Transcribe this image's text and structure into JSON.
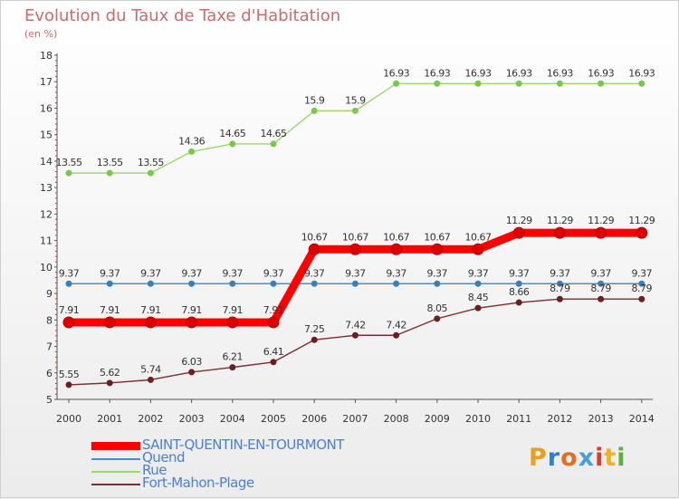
{
  "title": "Evolution du Taux de Taxe d'Habitation",
  "unit": "(en %)",
  "logo": {
    "text": "Proxiti",
    "letters": [
      {
        "ch": "P",
        "color": "#e8a020"
      },
      {
        "ch": "r",
        "color": "#2f7fd0"
      },
      {
        "ch": "o",
        "color": "#e07020"
      },
      {
        "ch": "x",
        "color": "#46a0d8"
      },
      {
        "ch": "i",
        "color": "#e23a2a"
      },
      {
        "ch": "t",
        "color": "#f0b020"
      },
      {
        "ch": "i",
        "color": "#5ab030"
      }
    ]
  },
  "chart_data": {
    "type": "line",
    "title": "Evolution du Taux de Taxe d'Habitation",
    "ylabel": "(en %)",
    "xlabel": "",
    "x": [
      "2000",
      "2001",
      "2002",
      "2003",
      "2004",
      "2005",
      "2006",
      "2007",
      "2008",
      "2009",
      "2010",
      "2011",
      "2012",
      "2013",
      "2014"
    ],
    "ylim": [
      5,
      18
    ],
    "yticks": [
      "5",
      "6",
      "7",
      "8",
      "9",
      "10",
      "11",
      "12",
      "13",
      "14",
      "15",
      "16",
      "17",
      "18"
    ],
    "grid": false,
    "legend_position": "bottom-left",
    "series": [
      {
        "name": "SAINT-QUENTIN-EN-TOURMONT",
        "color": "#ff0000",
        "marker": "#dd0000",
        "thick": true,
        "values": [
          7.91,
          7.91,
          7.91,
          7.91,
          7.91,
          7.91,
          10.67,
          10.67,
          10.67,
          10.67,
          10.67,
          11.29,
          11.29,
          11.29,
          11.29
        ],
        "labels": [
          "7.91",
          "7.91",
          "7.91",
          "7.91",
          "7.91",
          "7.91",
          "10.67",
          "10.67",
          "10.67",
          "10.67",
          "10.67",
          "11.29",
          "11.29",
          "11.29",
          "11.29"
        ]
      },
      {
        "name": "Quend",
        "color": "#4c8fc6",
        "marker": "#3a7fb8",
        "thick": false,
        "values": [
          9.37,
          9.37,
          9.37,
          9.37,
          9.37,
          9.37,
          9.37,
          9.37,
          9.37,
          9.37,
          9.37,
          9.37,
          9.37,
          9.37,
          9.37
        ],
        "labels": [
          "9.37",
          "9.37",
          "9.37",
          "9.37",
          "9.37",
          "9.37",
          "9.37",
          "9.37",
          "9.37",
          "9.37",
          "9.37",
          "9.37",
          "9.37",
          "9.37",
          "9.37"
        ]
      },
      {
        "name": "Rue",
        "color": "#9bd870",
        "marker": "#78c84a",
        "thick": false,
        "values": [
          13.55,
          13.55,
          13.55,
          14.36,
          14.65,
          14.65,
          15.9,
          15.9,
          16.93,
          16.93,
          16.93,
          16.93,
          16.93,
          16.93,
          16.93
        ],
        "labels": [
          "13.55",
          "13.55",
          "13.55",
          "14.36",
          "14.65",
          "14.65",
          "15.9",
          "15.9",
          "16.93",
          "16.93",
          "16.93",
          "16.93",
          "16.93",
          "16.93",
          "16.93"
        ]
      },
      {
        "name": "Fort-Mahon-Plage",
        "color": "#7a2e2e",
        "marker": "#6a2020",
        "thick": false,
        "values": [
          5.55,
          5.62,
          5.74,
          6.03,
          6.21,
          6.41,
          7.25,
          7.42,
          7.42,
          8.05,
          8.45,
          8.66,
          8.79,
          8.79,
          8.79
        ],
        "labels": [
          "5.55",
          "5.62",
          "5.74",
          "6.03",
          "6.21",
          "6.41",
          "7.25",
          "7.42",
          "7.42",
          "8.05",
          "8.45",
          "8.66",
          "8.79",
          "8.79",
          "8.79"
        ]
      }
    ]
  }
}
